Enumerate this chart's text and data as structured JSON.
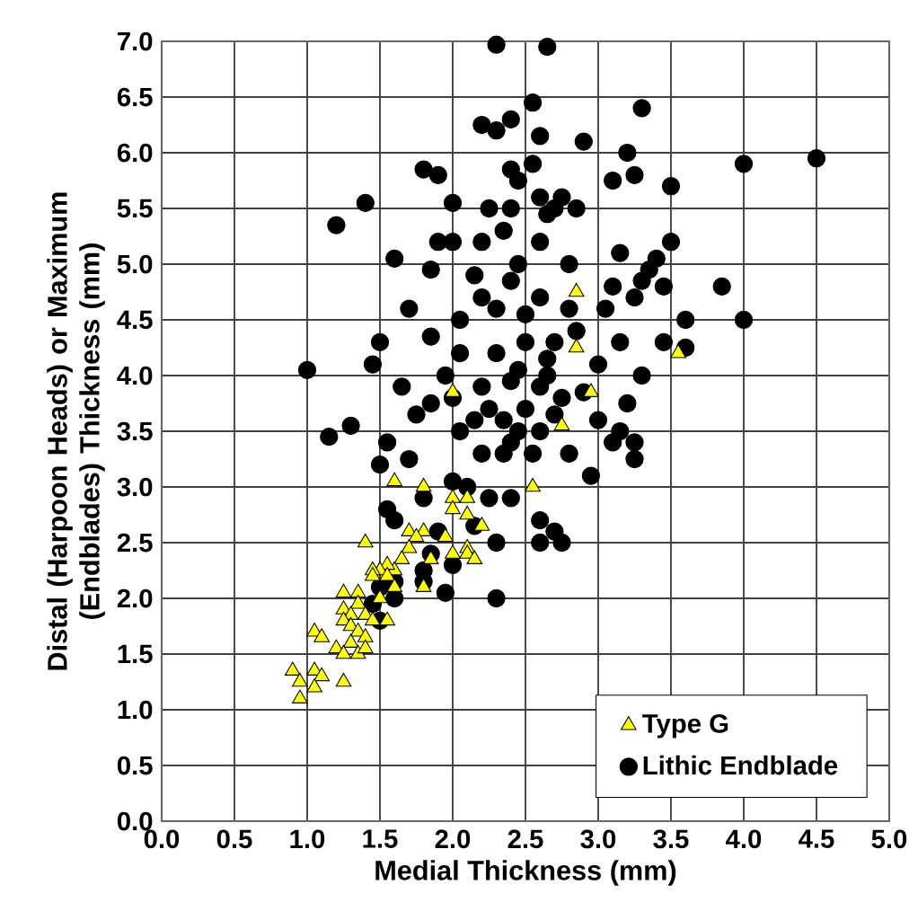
{
  "chart_data": {
    "type": "scatter",
    "xlabel": "Medial Thickness (mm)",
    "ylabel": "Distal (Harpoon Heads) or Maximum (Endblades) Thickness (mm)",
    "xlim": [
      0,
      5
    ],
    "ylim": [
      0,
      7
    ],
    "xticks": [
      {
        "value": 0,
        "label": "0.0"
      },
      {
        "value": 0.5,
        "label": "0.5"
      },
      {
        "value": 1,
        "label": "1.0"
      },
      {
        "value": 1.5,
        "label": "1.5"
      },
      {
        "value": 2,
        "label": "2.0"
      },
      {
        "value": 2.5,
        "label": "2.5"
      },
      {
        "value": 3,
        "label": "3.0"
      },
      {
        "value": 3.5,
        "label": "3.5"
      },
      {
        "value": 4,
        "label": "4.0"
      },
      {
        "value": 4.5,
        "label": "4.5"
      },
      {
        "value": 5,
        "label": "5.0"
      }
    ],
    "yticks": [
      {
        "value": 0,
        "label": "0.0"
      },
      {
        "value": 0.5,
        "label": "0.5"
      },
      {
        "value": 1,
        "label": "1.0"
      },
      {
        "value": 1.5,
        "label": "1.5"
      },
      {
        "value": 2,
        "label": "2.0"
      },
      {
        "value": 2.5,
        "label": "2.5"
      },
      {
        "value": 3,
        "label": "3.0"
      },
      {
        "value": 3.5,
        "label": "3.5"
      },
      {
        "value": 4,
        "label": "4.0"
      },
      {
        "value": 4.5,
        "label": "4.5"
      },
      {
        "value": 5,
        "label": "5.0"
      },
      {
        "value": 5.5,
        "label": "5.5"
      },
      {
        "value": 6,
        "label": "6.0"
      },
      {
        "value": 6.5,
        "label": "6.5"
      },
      {
        "value": 7,
        "label": "7.0"
      }
    ],
    "grid": true,
    "legend": "bottom right",
    "series": [
      {
        "name": "Lithic Endblade",
        "color": "#000000",
        "marker": "circle",
        "x": [
          2.3,
          2.65,
          2.55,
          3.3,
          2.2,
          2.3,
          2.4,
          2.6,
          2.9,
          3.2,
          2.55,
          2.4,
          4.0,
          4.5,
          1.8,
          1.9,
          3.1,
          3.25,
          2.85,
          3.5,
          2.6,
          2.75,
          2.7,
          2.65,
          1.4,
          1.2,
          1.6,
          1.9,
          2.0,
          2.2,
          2.45,
          2.35,
          2.4,
          2.6,
          2.8,
          3.15,
          3.4,
          3.35,
          3.5,
          3.3,
          3.05,
          3.1,
          3.25,
          1.5,
          1.45,
          1.85,
          2.05,
          2.3,
          2.5,
          2.65,
          2.85,
          3.0,
          3.45,
          3.6,
          3.85,
          4.0,
          1.0,
          1.3,
          1.15,
          1.65,
          1.85,
          1.95,
          1.75,
          2.0,
          2.2,
          2.4,
          2.6,
          2.9,
          3.0,
          3.25,
          3.25,
          3.15,
          2.2,
          2.4,
          2.6,
          2.8,
          2.95,
          3.1,
          1.7,
          1.55,
          1.5,
          1.55,
          1.6,
          1.8,
          2.0,
          2.1,
          2.25,
          2.4,
          2.6,
          2.7,
          2.6,
          2.75,
          2.15,
          2.3,
          1.9,
          1.85,
          2.0,
          1.8,
          1.6,
          1.5,
          1.6,
          1.8,
          1.95,
          2.3,
          1.45,
          1.5,
          2.05,
          2.25,
          2.35,
          2.5,
          2.7,
          2.45,
          2.55,
          2.75,
          2.65,
          2.45,
          2.35,
          2.15,
          2.05,
          2.3,
          2.6,
          2.8,
          2.7,
          2.5,
          2.2,
          2.4,
          3.45,
          3.6,
          3.2,
          3.3,
          3.15,
          1.7,
          2.15,
          1.85,
          2.0,
          2.25,
          2.45
        ],
        "values": [
          6.97,
          6.95,
          6.45,
          6.4,
          6.25,
          6.2,
          6.3,
          6.15,
          6.1,
          6.0,
          5.9,
          5.85,
          5.9,
          5.95,
          5.85,
          5.8,
          5.75,
          5.8,
          5.5,
          5.7,
          5.6,
          5.6,
          5.5,
          5.45,
          5.55,
          5.35,
          5.05,
          5.2,
          5.2,
          5.2,
          5.0,
          5.3,
          5.5,
          5.2,
          5.0,
          5.1,
          5.05,
          4.95,
          5.2,
          4.85,
          4.6,
          4.8,
          4.7,
          4.3,
          4.1,
          4.35,
          4.2,
          4.2,
          4.3,
          4.15,
          4.4,
          4.1,
          4.3,
          4.25,
          4.8,
          4.5,
          4.05,
          3.55,
          3.45,
          3.9,
          3.75,
          4.0,
          3.65,
          3.8,
          3.9,
          3.95,
          3.9,
          3.85,
          3.6,
          3.4,
          3.25,
          3.5,
          3.3,
          3.4,
          3.5,
          3.3,
          3.1,
          3.4,
          3.25,
          3.4,
          3.2,
          2.8,
          2.7,
          2.9,
          3.05,
          3.0,
          2.9,
          2.9,
          2.7,
          2.6,
          2.5,
          2.5,
          2.65,
          2.5,
          2.6,
          2.4,
          2.3,
          2.25,
          2.15,
          2.1,
          2.0,
          2.15,
          2.05,
          2.0,
          1.95,
          1.8,
          3.5,
          3.7,
          3.6,
          3.7,
          3.65,
          3.5,
          3.3,
          3.8,
          4.0,
          4.05,
          3.3,
          3.6,
          4.5,
          4.6,
          4.7,
          4.6,
          4.3,
          4.55,
          4.7,
          4.85,
          4.8,
          4.5,
          3.75,
          4.0,
          4.3,
          4.6,
          4.9,
          4.95,
          5.55,
          5.5,
          5.75
        ]
      },
      {
        "name": "Type G",
        "color": "#ffff00",
        "marker": "triangle",
        "x": [
          2.85,
          2.85,
          2.95,
          2.75,
          3.55,
          2.0,
          2.55,
          2.2,
          1.6,
          1.8,
          2.0,
          2.0,
          2.1,
          2.1,
          2.1,
          2.1,
          2.15,
          1.95,
          2.0,
          1.8,
          1.7,
          1.75,
          1.7,
          1.85,
          1.65,
          1.6,
          1.55,
          1.5,
          1.45,
          1.45,
          1.55,
          1.6,
          1.8,
          1.4,
          1.5,
          1.25,
          1.35,
          1.35,
          1.25,
          1.3,
          1.25,
          1.3,
          1.4,
          1.45,
          1.55,
          1.35,
          1.4,
          1.3,
          1.05,
          1.1,
          1.2,
          1.25,
          1.35,
          1.4,
          0.9,
          1.05,
          1.1,
          0.95,
          1.05,
          1.25,
          0.95
        ],
        "values": [
          4.75,
          4.25,
          3.85,
          3.55,
          4.2,
          3.85,
          3.0,
          2.65,
          3.05,
          3.0,
          2.9,
          2.8,
          2.9,
          2.75,
          2.45,
          2.4,
          2.35,
          2.55,
          2.4,
          2.6,
          2.6,
          2.55,
          2.45,
          2.35,
          2.35,
          2.25,
          2.3,
          2.25,
          2.25,
          2.2,
          2.2,
          2.1,
          2.1,
          2.5,
          2.0,
          2.05,
          2.05,
          1.95,
          1.9,
          1.85,
          1.8,
          1.75,
          1.85,
          1.8,
          1.8,
          1.7,
          1.65,
          1.6,
          1.7,
          1.65,
          1.55,
          1.5,
          1.5,
          1.55,
          1.35,
          1.35,
          1.3,
          1.25,
          1.2,
          1.25,
          1.1
        ]
      }
    ]
  }
}
